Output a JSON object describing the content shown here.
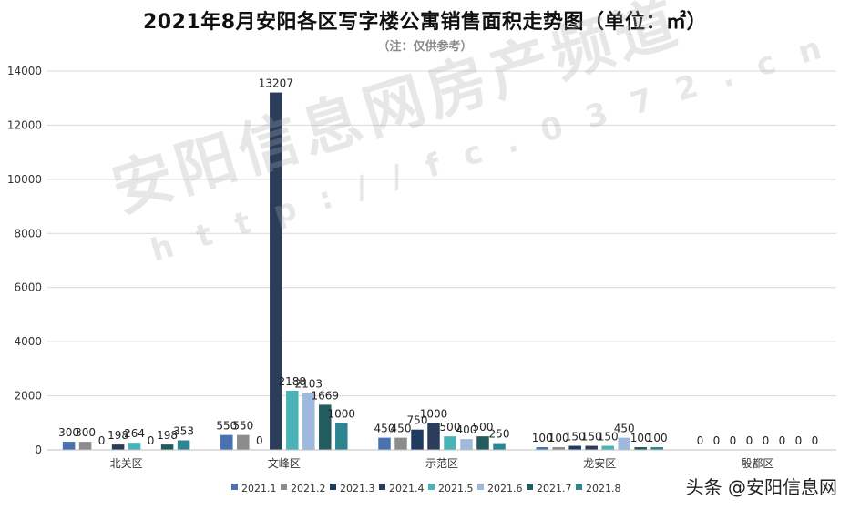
{
  "chart_data": {
    "type": "bar",
    "title": "2021年8月安阳各区写字楼公寓销售面积走势图（单位：㎡）",
    "subtitle": "（注：仅供参考）",
    "categories": [
      "北关区",
      "文峰区",
      "示范区",
      "龙安区",
      "殷都区"
    ],
    "series": [
      {
        "name": "2021.1",
        "color": "#4a72b0",
        "values": [
          300,
          550,
          450,
          100,
          0
        ]
      },
      {
        "name": "2021.2",
        "color": "#8c8c8c",
        "values": [
          300,
          550,
          450,
          100,
          0
        ]
      },
      {
        "name": "2021.3",
        "color": "#1f3a5f",
        "values": [
          0,
          0,
          750,
          150,
          0
        ]
      },
      {
        "name": "2021.4",
        "color": "#2b3d5b",
        "values": [
          198,
          13207,
          1000,
          150,
          0
        ]
      },
      {
        "name": "2021.5",
        "color": "#4bb3b8",
        "values": [
          264,
          2188,
          500,
          150,
          0
        ]
      },
      {
        "name": "2021.6",
        "color": "#9fb9dc",
        "values": [
          0,
          2103,
          400,
          450,
          0
        ]
      },
      {
        "name": "2021.7",
        "color": "#225c5e",
        "values": [
          198,
          1669,
          500,
          100,
          0
        ]
      },
      {
        "name": "2021.8",
        "color": "#2d8591",
        "values": [
          353,
          1000,
          250,
          100,
          0
        ]
      }
    ],
    "data_labels": [
      [
        "300",
        "300",
        "0",
        "198",
        "264",
        "0",
        "198",
        "353"
      ],
      [
        "550",
        "550",
        "0",
        "13207",
        "2188",
        "2103",
        "1669",
        "1000"
      ],
      [
        "450",
        "450",
        "750",
        "1000",
        "500",
        "400",
        "500",
        "250"
      ],
      [
        "100",
        "100",
        "150",
        "150",
        "150",
        "450",
        "100",
        "100"
      ],
      [
        "0",
        "0",
        "0",
        "0",
        "0",
        "0",
        "0",
        "0"
      ]
    ],
    "y_ticks": [
      "0",
      "2000",
      "4000",
      "6000",
      "8000",
      "10000",
      "12000",
      "14000"
    ],
    "ylim": [
      0,
      14000
    ],
    "grid": true,
    "legend_position": "bottom",
    "xlabel": "",
    "ylabel": ""
  },
  "watermark": {
    "main": "安阳信息网房产频道",
    "url": "http://fc.0372.cn"
  },
  "source_tag": "头条 @安阳信息网"
}
